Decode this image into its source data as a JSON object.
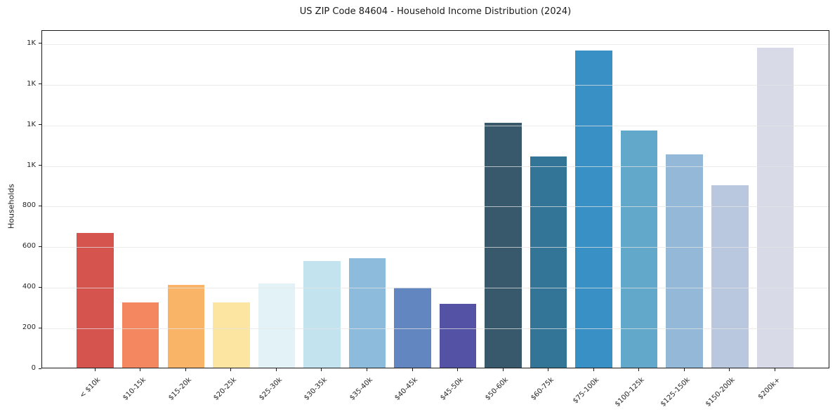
{
  "chart_data": {
    "type": "bar",
    "title": "US ZIP Code 84604 - Household Income Distribution (2024)",
    "xlabel": "",
    "ylabel": "Households",
    "categories": [
      "< $10k",
      "$10-15k",
      "$15-20k",
      "$20-25k",
      "$25-30k",
      "$30-35k",
      "$35-40k",
      "$40-45k",
      "$45-50k",
      "$50-60k",
      "$60-75k",
      "$75-100k",
      "$100-125k",
      "$125-150k",
      "$150-200k",
      "$200k+"
    ],
    "values": [
      665,
      322,
      408,
      323,
      414,
      524,
      538,
      394,
      315,
      1205,
      1041,
      1563,
      1167,
      1052,
      900,
      1577
    ],
    "bar_colors": [
      "#d6544e",
      "#f4875f",
      "#f9b468",
      "#fce5a1",
      "#e3f2f6",
      "#c3e4ee",
      "#8cbbdc",
      "#6186c0",
      "#5452a4",
      "#38596b",
      "#337596",
      "#3890c4",
      "#61a8cb",
      "#94b9d8",
      "#b9c7df",
      "#d9dae8"
    ],
    "ylim": [
      0,
      1665
    ],
    "yticks": [
      {
        "value": 0,
        "label": "0"
      },
      {
        "value": 200,
        "label": "200"
      },
      {
        "value": 400,
        "label": "400"
      },
      {
        "value": 600,
        "label": "600"
      },
      {
        "value": 800,
        "label": "800"
      },
      {
        "value": 1000,
        "label": "1K"
      },
      {
        "value": 1200,
        "label": "1K"
      },
      {
        "value": 1400,
        "label": "1K"
      },
      {
        "value": 1600,
        "label": "1K"
      }
    ],
    "grid": "horizontal",
    "gridline_color": "#e4e4e4",
    "axis_color": "#1a1a1a",
    "background": "#ffffff",
    "legend": "none"
  }
}
